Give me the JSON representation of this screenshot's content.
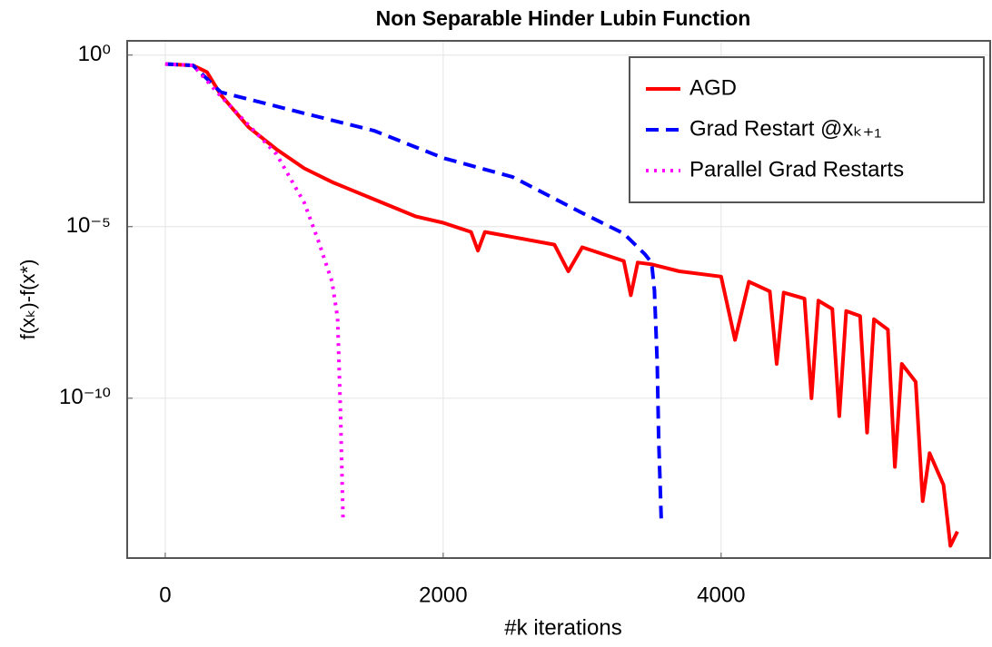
{
  "chart_data": {
    "type": "line",
    "title": "Non Separable Hinder Lubin Function",
    "x_label": "#k iterations",
    "y_label": "f(xₖ)-f(x*)",
    "xlim": [
      -274,
      5936
    ],
    "xticks": [
      0,
      2000,
      4000
    ],
    "ylim": [
      2.6,
      2.2e-15
    ],
    "yticks": [
      {
        "value": 1,
        "label": "10⁰"
      },
      {
        "value": 1e-05,
        "label": "10⁻⁵"
      },
      {
        "value": 1e-10,
        "label": "10⁻¹⁰"
      }
    ],
    "y_log": true,
    "grid": true,
    "legend": "upper right",
    "series": [
      {
        "name": "AGD",
        "color": "#ff0000",
        "style": "solid",
        "x": [
          0,
          200,
          300,
          400,
          600,
          800,
          1000,
          1200,
          1500,
          1800,
          2000,
          2200,
          2250,
          2300,
          2500,
          2800,
          2900,
          3000,
          3300,
          3350,
          3400,
          3500,
          3700,
          4000,
          4100,
          4200,
          4350,
          4400,
          4450,
          4600,
          4650,
          4700,
          4800,
          4850,
          4900,
          5000,
          5050,
          5100,
          5200,
          5250,
          5300,
          5400,
          5450,
          5500,
          5600,
          5650,
          5700
        ],
        "values": [
          0.55,
          0.5,
          0.32,
          0.069,
          0.0079,
          0.0018,
          0.0005,
          0.0002,
          6.3e-05,
          2e-05,
          1.3e-05,
          7e-06,
          2e-06,
          7e-06,
          5e-06,
          3e-06,
          5e-07,
          2.5e-06,
          1e-06,
          1e-07,
          9e-07,
          8e-07,
          5e-07,
          3.5e-07,
          5e-09,
          2.5e-07,
          1.3e-07,
          1e-09,
          1.2e-07,
          8e-08,
          1e-10,
          7e-08,
          4e-08,
          3e-11,
          3.5e-08,
          2.5e-08,
          1e-11,
          2e-08,
          1e-08,
          1e-12,
          1e-09,
          3e-10,
          1e-13,
          2.5e-12,
          3e-13,
          5e-15,
          1.3e-14
        ]
      },
      {
        "name": "Grad Restart @xₖ₊₁",
        "color": "#0000ff",
        "style": "dashed",
        "x": [
          0,
          200,
          400,
          1000,
          1500,
          2000,
          2500,
          3000,
          3300,
          3450,
          3500,
          3520,
          3540,
          3550,
          3570
        ],
        "values": [
          0.55,
          0.5,
          0.083,
          0.02,
          0.0063,
          0.001,
          0.00028,
          2.5e-05,
          6.3e-06,
          1.6e-06,
          8.9e-07,
          1.4e-07,
          1e-09,
          7.9e-12,
          2e-14
        ]
      },
      {
        "name": "Parallel Grad Restarts",
        "color": "#ff00ff",
        "style": "dotted",
        "x": [
          0,
          200,
          400,
          600,
          800,
          1000,
          1100,
          1200,
          1240,
          1260,
          1280
        ],
        "values": [
          0.55,
          0.5,
          0.063,
          0.0091,
          0.0013,
          5e-05,
          4e-06,
          2.5e-07,
          2.2e-08,
          5e-11,
          2.5e-14
        ]
      }
    ]
  }
}
